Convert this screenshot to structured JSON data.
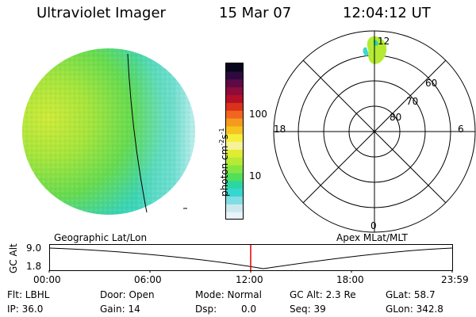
{
  "header": {
    "title": "Ultraviolet Imager",
    "date": "15 Mar 07",
    "time": "12:04:12 UT"
  },
  "colorbar": {
    "label": "photon cm",
    "label_exp1": "-2",
    "label_s": "s",
    "label_exp2": "-1",
    "ticks": [
      {
        "label": "100",
        "value": 100
      },
      {
        "label": "10",
        "value": 10
      }
    ],
    "range": [
      2,
      700
    ],
    "scale": "log",
    "colors": [
      "#e9f3f9",
      "#c9e9ee",
      "#7fdde3",
      "#38d6d0",
      "#2bd6a4",
      "#52df5a",
      "#86e641",
      "#b5ea35",
      "#dfec32",
      "#f6f29a",
      "#f5ee3d",
      "#f4c31f",
      "#f59a1d",
      "#f2651f",
      "#d9311a",
      "#b31027",
      "#8d0c39",
      "#5e0a46",
      "#2d0a3d",
      "#07061a"
    ]
  },
  "polar": {
    "mlt_labels": {
      "top": "12",
      "left": "18",
      "right": "6",
      "bottom": "0"
    },
    "lat_labels": [
      "60",
      "70",
      "80"
    ]
  },
  "timeline": {
    "title_left": "Geographic Lat/Lon",
    "title_right": "Apex MLat/MLT",
    "ylabel": "GC Alt",
    "y_ticks": [
      "9.0",
      "1.8"
    ],
    "x_ticks": [
      "00:00",
      "06:00",
      "12:00",
      "18:00",
      "23:59"
    ]
  },
  "footer": {
    "flt": "Flt: LBHL",
    "ip": "IP: 36.0",
    "door": "Door: Open",
    "gain": "Gain: 14",
    "mode": "Mode: Normal",
    "dsp_label": "Dsp:",
    "dsp_value": "0.0",
    "gcalt": "GC Alt: 2.3 Re",
    "seq": "Seq: 39",
    "glat": "GLat: 58.7",
    "glon": "GLon: 342.8"
  }
}
